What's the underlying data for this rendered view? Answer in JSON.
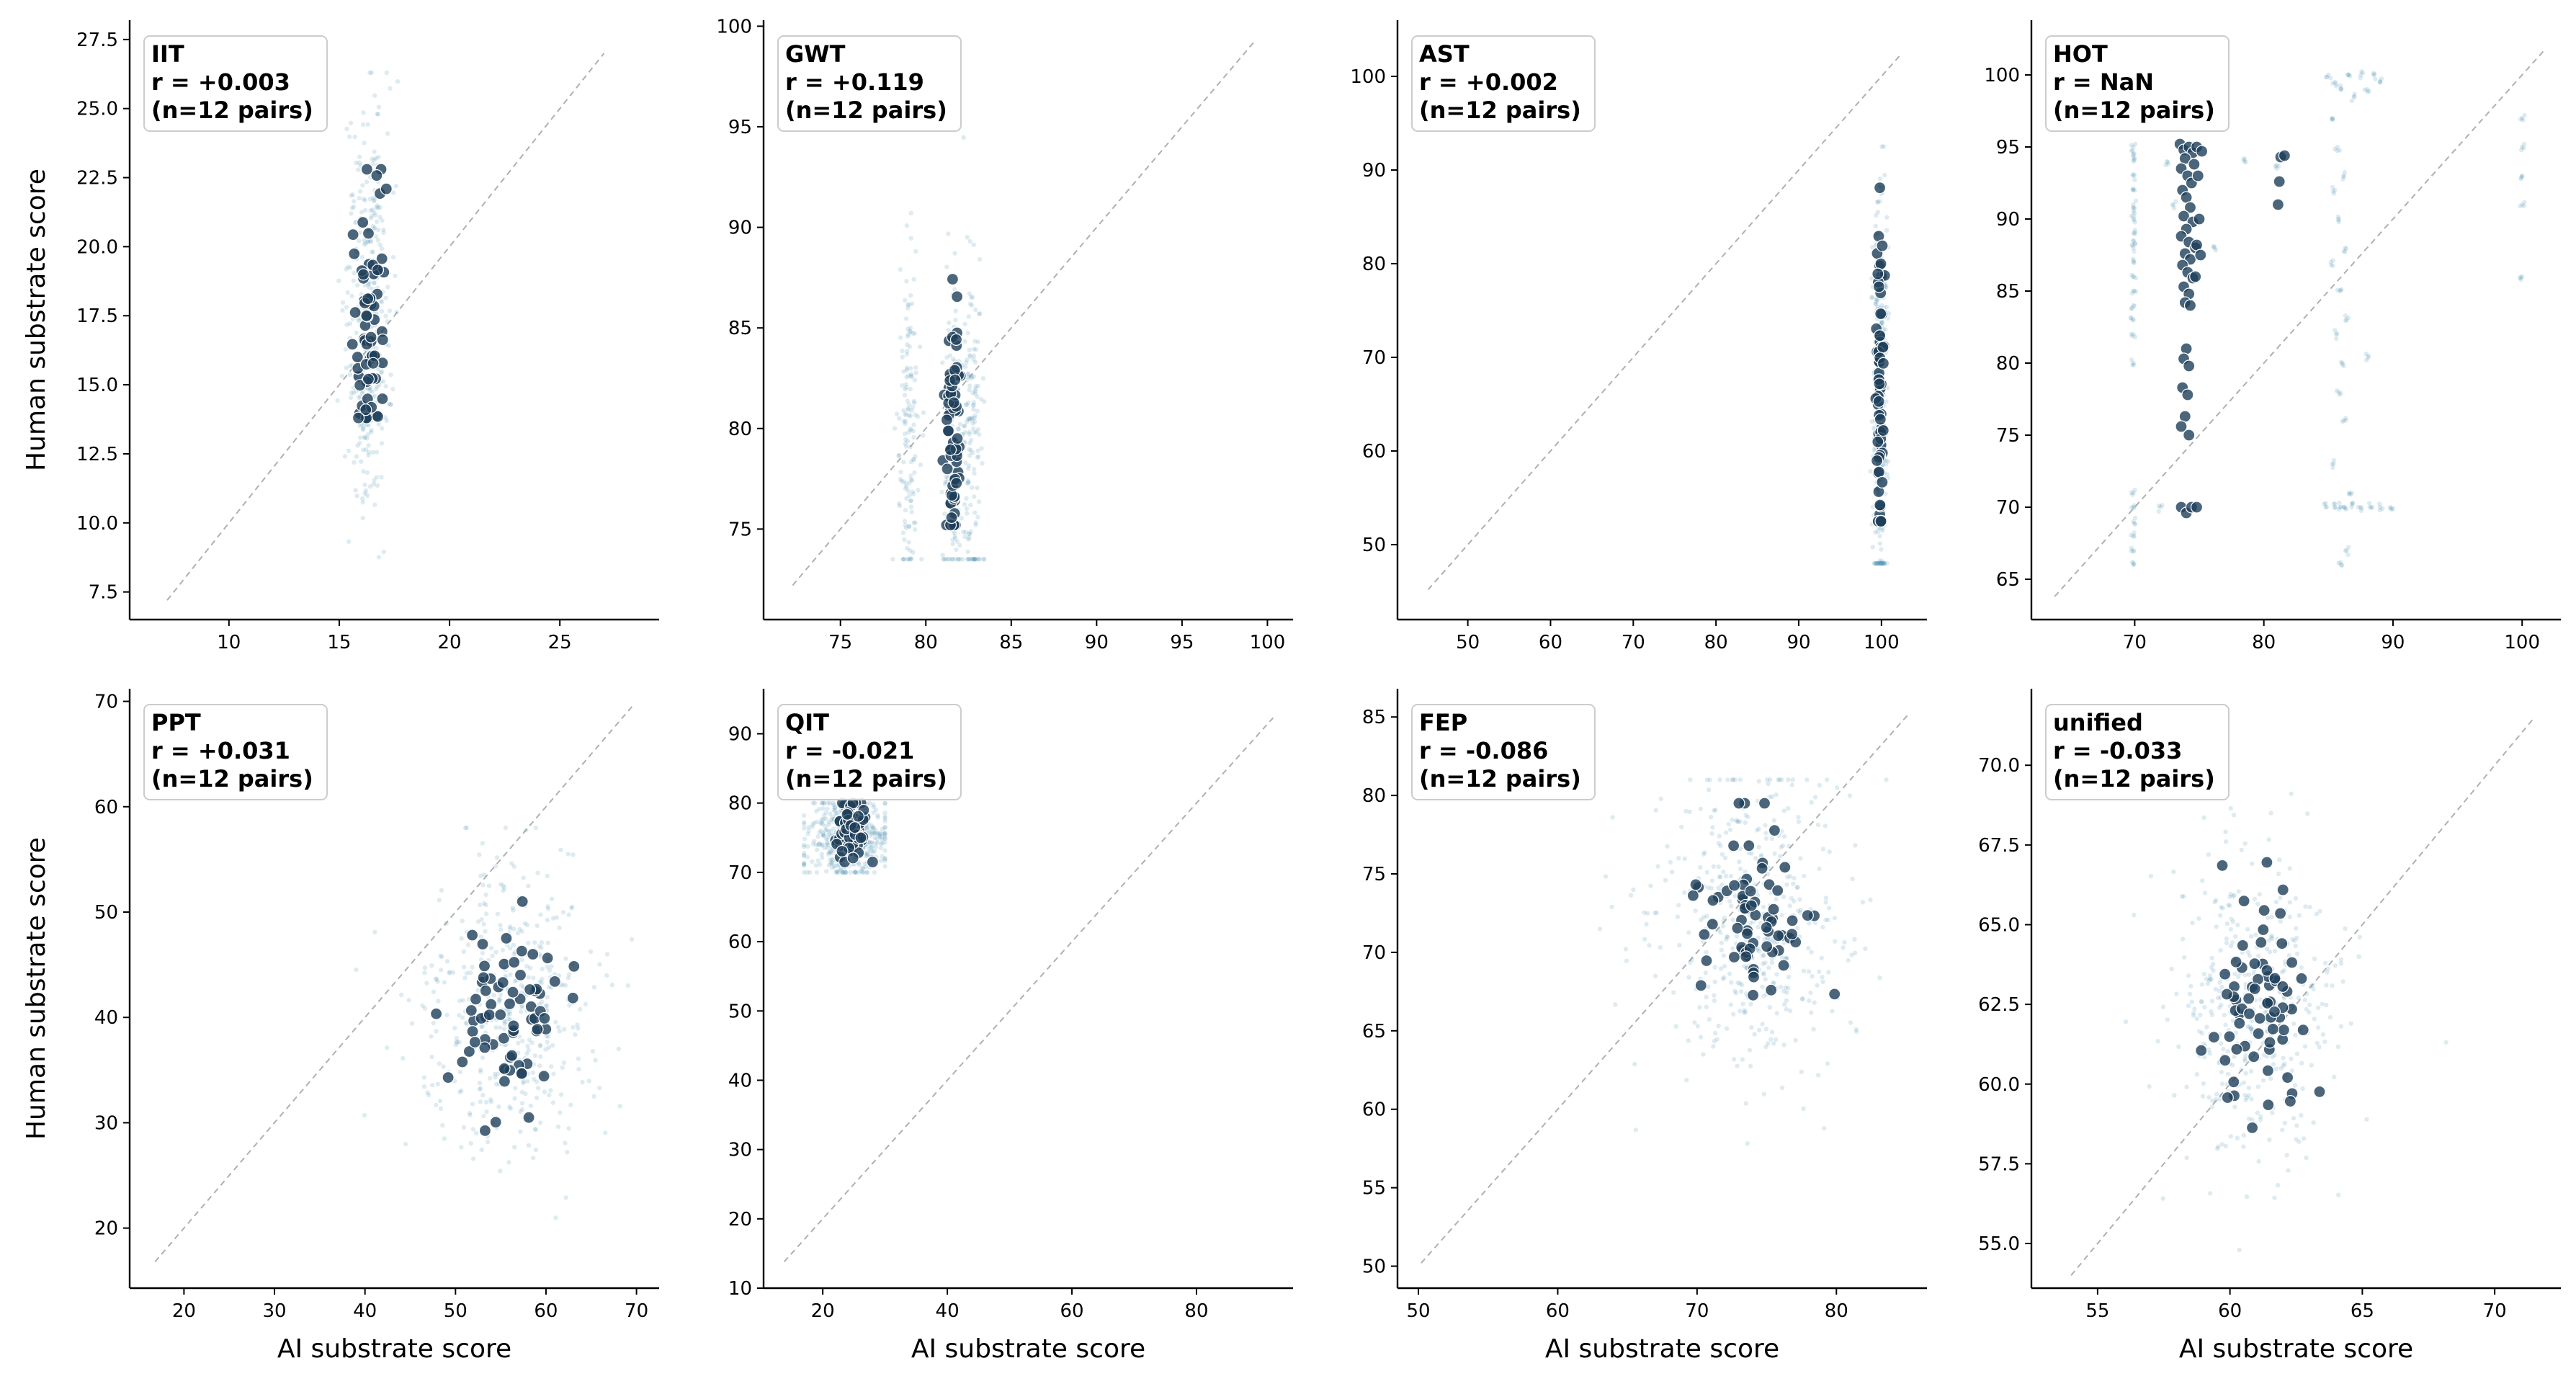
{
  "colors": {
    "background_dot": "#4a8fb0",
    "highlight_dot": "#1e3f5a",
    "diagonal": "#b0b0b0",
    "axis": "#000000",
    "annotation_border": "#cccccc"
  },
  "axis_labels": {
    "x": "AI substrate score",
    "y": "Human substrate score"
  },
  "chart_data": [
    {
      "type": "scatter",
      "panel": "IIT",
      "annotation": [
        "IIT",
        "r = +0.003",
        "(n=12 pairs)"
      ],
      "xlim": [
        5.5,
        29.5
      ],
      "ylim": [
        6.5,
        28.2
      ],
      "xticks": [
        10,
        15,
        20,
        25
      ],
      "xtick_labels": [
        "10",
        "15",
        "20",
        "25"
      ],
      "yticks": [
        7.5,
        10,
        12.5,
        15,
        17.5,
        20,
        22.5,
        25,
        27.5
      ],
      "ytick_labels": [
        "7.5",
        "10.0",
        "12.5",
        "15.0",
        "17.5",
        "20.0",
        "22.5",
        "25.0",
        "27.5"
      ],
      "diagonal": [
        7.2,
        27.0
      ],
      "show_xlabel": false,
      "show_ylabel": true,
      "highlight": {
        "x_center": 16.3,
        "x_spread": 0.4,
        "y_center": 17.8,
        "y_spread": 2.4,
        "y_min": 13.8,
        "y_max": 22.8,
        "n": 70
      },
      "background": {
        "x_center": 16.3,
        "x_spread": 0.5,
        "y_center": 17.5,
        "y_spread": 3.5,
        "y_min": 8.1,
        "y_max": 26.3,
        "n": 380
      }
    },
    {
      "type": "scatter",
      "panel": "GWT",
      "annotation": [
        "GWT",
        "r = +0.119",
        "(n=12 pairs)"
      ],
      "xlim": [
        70.5,
        101.5
      ],
      "ylim": [
        70.5,
        100.3
      ],
      "xticks": [
        75,
        80,
        85,
        90,
        95,
        100
      ],
      "xtick_labels": [
        "75",
        "80",
        "85",
        "90",
        "95",
        "100"
      ],
      "yticks": [
        75,
        80,
        85,
        90,
        95,
        100
      ],
      "ytick_labels": [
        "75",
        "80",
        "85",
        "90",
        "95",
        "100"
      ],
      "diagonal": [
        72.2,
        99.2
      ],
      "show_xlabel": false,
      "show_ylabel": false,
      "highlight": {
        "x_center": 81.6,
        "x_spread": 0.2,
        "y_center": 79.5,
        "y_spread": 3.0,
        "y_min": 75.2,
        "y_max": 92.7,
        "n": 70
      },
      "background": {
        "x_values": [
          79.0,
          81.6,
          82.7
        ],
        "x_spread": 0.3,
        "y_center": 79.5,
        "y_spread": 4.5,
        "y_min": 73.5,
        "y_max": 98.0,
        "n": 420
      }
    },
    {
      "type": "scatter",
      "panel": "AST",
      "annotation": [
        "AST",
        "r = +0.002",
        "(n=12 pairs)"
      ],
      "xlim": [
        41.5,
        105.5
      ],
      "ylim": [
        42,
        106
      ],
      "xticks": [
        50,
        60,
        70,
        80,
        90,
        100
      ],
      "xtick_labels": [
        "50",
        "60",
        "70",
        "80",
        "90",
        "100"
      ],
      "yticks": [
        50,
        60,
        70,
        80,
        90,
        100
      ],
      "ytick_labels": [
        "50",
        "60",
        "70",
        "80",
        "90",
        "100"
      ],
      "diagonal": [
        45.2,
        102.3
      ],
      "show_xlabel": false,
      "show_ylabel": false,
      "highlight": {
        "x_center": 99.8,
        "x_spread": 0.2,
        "y_center": 66.0,
        "y_spread": 9.0,
        "y_min": 52.5,
        "y_max": 89.0,
        "n": 70
      },
      "background": {
        "x_center": 99.8,
        "x_spread": 0.4,
        "y_center": 66.0,
        "y_spread": 11.0,
        "y_min": 48.0,
        "y_max": 92.5,
        "n": 380
      }
    },
    {
      "type": "scatter",
      "panel": "HOT",
      "annotation": [
        "HOT",
        "r = NaN",
        "(n=12 pairs)"
      ],
      "xlim": [
        62,
        103
      ],
      "ylim": [
        62.2,
        103.8
      ],
      "xticks": [
        70,
        80,
        90,
        100
      ],
      "xtick_labels": [
        "70",
        "80",
        "90",
        "100"
      ],
      "yticks": [
        65,
        70,
        75,
        80,
        85,
        90,
        95,
        100
      ],
      "ytick_labels": [
        "65",
        "70",
        "75",
        "80",
        "85",
        "90",
        "95",
        "100"
      ],
      "diagonal": [
        63.8,
        101.7
      ],
      "show_xlabel": false,
      "show_ylabel": false,
      "highlight_points": [
        [
          73.5,
          95.2
        ],
        [
          73.8,
          94.8
        ],
        [
          74.2,
          95.0
        ],
        [
          74.5,
          94.6
        ],
        [
          73.9,
          94.2
        ],
        [
          74.6,
          93.8
        ],
        [
          73.6,
          93.5
        ],
        [
          74.1,
          93.0
        ],
        [
          74.4,
          92.5
        ],
        [
          73.7,
          92.0
        ],
        [
          74.0,
          91.5
        ],
        [
          74.3,
          90.8
        ],
        [
          73.8,
          90.2
        ],
        [
          74.5,
          89.8
        ],
        [
          74.0,
          89.3
        ],
        [
          73.6,
          88.8
        ],
        [
          74.2,
          88.4
        ],
        [
          74.7,
          88.0
        ],
        [
          73.9,
          87.6
        ],
        [
          74.3,
          87.2
        ],
        [
          73.7,
          86.8
        ],
        [
          74.1,
          86.3
        ],
        [
          74.5,
          85.9
        ],
        [
          73.8,
          85.3
        ],
        [
          74.2,
          84.8
        ],
        [
          73.9,
          84.2
        ],
        [
          74.3,
          84.0
        ],
        [
          74.0,
          81.0
        ],
        [
          73.8,
          80.3
        ],
        [
          74.2,
          79.8
        ],
        [
          73.7,
          78.3
        ],
        [
          74.1,
          77.8
        ],
        [
          73.9,
          76.3
        ],
        [
          73.6,
          75.6
        ],
        [
          74.2,
          75.0
        ],
        [
          74.8,
          95.0
        ],
        [
          75.2,
          94.7
        ],
        [
          74.9,
          93.0
        ],
        [
          75.0,
          90.0
        ],
        [
          74.8,
          88.2
        ],
        [
          75.1,
          87.5
        ],
        [
          74.7,
          86.0
        ],
        [
          73.6,
          70.0
        ],
        [
          74.0,
          69.6
        ],
        [
          74.4,
          70.0
        ],
        [
          74.8,
          70.0
        ],
        [
          81.3,
          94.3
        ],
        [
          81.6,
          94.4
        ],
        [
          81.2,
          92.6
        ],
        [
          81.1,
          91.0
        ]
      ],
      "background_points": [
        [
          69.9,
          95
        ],
        [
          69.9,
          94
        ],
        [
          69.9,
          93
        ],
        [
          69.9,
          92
        ],
        [
          69.9,
          91
        ],
        [
          69.9,
          90
        ],
        [
          69.9,
          89
        ],
        [
          69.9,
          88
        ],
        [
          69.9,
          87
        ],
        [
          69.9,
          86
        ],
        [
          69.9,
          85
        ],
        [
          69.9,
          84
        ],
        [
          69.9,
          83
        ],
        [
          69.9,
          82
        ],
        [
          69.9,
          80
        ],
        [
          69.9,
          71
        ],
        [
          69.9,
          70
        ],
        [
          69.9,
          69
        ],
        [
          69.9,
          68
        ],
        [
          69.9,
          67
        ],
        [
          69.9,
          66
        ],
        [
          69.9,
          94.5
        ],
        [
          69.9,
          90.5
        ],
        [
          69.9,
          88.5
        ],
        [
          85.0,
          100
        ],
        [
          85.5,
          99.5
        ],
        [
          86.0,
          99
        ],
        [
          86.5,
          100
        ],
        [
          87.0,
          98.5
        ],
        [
          87.5,
          100
        ],
        [
          88.0,
          99
        ],
        [
          88.5,
          100
        ],
        [
          89.0,
          99.5
        ],
        [
          85.3,
          97
        ],
        [
          85.7,
          95
        ],
        [
          86.2,
          93
        ],
        [
          85.5,
          92
        ],
        [
          85.8,
          90
        ],
        [
          86.3,
          88
        ],
        [
          85.2,
          87
        ],
        [
          85.9,
          85
        ],
        [
          86.4,
          83
        ],
        [
          85.6,
          82
        ],
        [
          86.1,
          80
        ],
        [
          85.8,
          78
        ],
        [
          86.2,
          76
        ],
        [
          85.4,
          73
        ],
        [
          85.9,
          70
        ],
        [
          86.4,
          67
        ],
        [
          84.8,
          70
        ],
        [
          85.5,
          70
        ],
        [
          86.2,
          70
        ],
        [
          86.8,
          70
        ],
        [
          87.5,
          70
        ],
        [
          88.2,
          70
        ],
        [
          89.0,
          70
        ],
        [
          89.8,
          70
        ],
        [
          86.6,
          71
        ],
        [
          86.0,
          66
        ],
        [
          100,
          97
        ],
        [
          100,
          95
        ],
        [
          100,
          93
        ],
        [
          100,
          91
        ],
        [
          100,
          86
        ],
        [
          88.1,
          80.5
        ],
        [
          72.0,
          70
        ],
        [
          72.5,
          94
        ],
        [
          73.0,
          91
        ],
        [
          76.2,
          88
        ],
        [
          78.5,
          94
        ],
        [
          81.6,
          94.5
        ],
        [
          81.0,
          93.5
        ]
      ]
    },
    {
      "type": "scatter",
      "panel": "PPT",
      "annotation": [
        "PPT",
        "r = +0.031",
        "(n=12 pairs)"
      ],
      "xlim": [
        14,
        72.5
      ],
      "ylim": [
        14.3,
        71.2
      ],
      "xticks": [
        20,
        30,
        40,
        50,
        60,
        70
      ],
      "xtick_labels": [
        "20",
        "30",
        "40",
        "50",
        "60",
        "70"
      ],
      "yticks": [
        20,
        30,
        40,
        50,
        60,
        70
      ],
      "ytick_labels": [
        "20",
        "30",
        "40",
        "50",
        "60",
        "70"
      ],
      "diagonal": [
        16.8,
        69.5
      ],
      "show_xlabel": true,
      "show_ylabel": true,
      "highlight": {
        "x_center": 56.0,
        "x_spread": 3.0,
        "y_center": 40.5,
        "y_spread": 5.2,
        "y_min": 28.5,
        "y_max": 51.0,
        "n": 70
      },
      "background": {
        "x_center": 56.0,
        "x_spread": 5.0,
        "y_center": 40.5,
        "y_spread": 7.0,
        "y_min": 19.0,
        "y_max": 58.0,
        "n": 450
      }
    },
    {
      "type": "scatter",
      "panel": "QIT",
      "annotation": [
        "QIT",
        "r = -0.021",
        "(n=12 pairs)"
      ],
      "xlim": [
        10.5,
        95.5
      ],
      "ylim": [
        10,
        96.5
      ],
      "xticks": [
        20,
        40,
        60,
        80
      ],
      "xtick_labels": [
        "20",
        "40",
        "60",
        "80"
      ],
      "yticks": [
        10,
        20,
        30,
        40,
        50,
        60,
        70,
        80,
        90
      ],
      "ytick_labels": [
        "10",
        "20",
        "30",
        "40",
        "50",
        "60",
        "70",
        "80",
        "90"
      ],
      "diagonal": [
        13.8,
        92.3
      ],
      "show_xlabel": true,
      "show_ylabel": false,
      "highlight": {
        "x_center": 24.5,
        "x_spread": 1.3,
        "y_center": 75.5,
        "y_spread": 2.2,
        "y_min": 71.5,
        "y_max": 80.0,
        "n": 80
      },
      "background": {
        "x_center": 24.0,
        "x_spread": 3.5,
        "y_center": 75.0,
        "y_spread": 3.0,
        "y_min": 70.0,
        "y_max": 80.0,
        "x_min": 17.0,
        "x_max": 30.0,
        "n": 450
      }
    },
    {
      "type": "scatter",
      "panel": "FEP",
      "annotation": [
        "FEP",
        "r = -0.086",
        "(n=12 pairs)"
      ],
      "xlim": [
        48.5,
        86.5
      ],
      "ylim": [
        48.6,
        86.8
      ],
      "xticks": [
        50,
        60,
        70,
        80
      ],
      "xtick_labels": [
        "50",
        "60",
        "70",
        "80"
      ],
      "yticks": [
        50,
        55,
        60,
        65,
        70,
        75,
        80,
        85
      ],
      "ytick_labels": [
        "50",
        "55",
        "60",
        "65",
        "70",
        "75",
        "80",
        "85"
      ],
      "diagonal": [
        50.2,
        85.2
      ],
      "show_xlabel": true,
      "show_ylabel": false,
      "highlight": {
        "x_center": 74.0,
        "x_spread": 1.8,
        "y_center": 72.5,
        "y_spread": 3.0,
        "y_min": 58.8,
        "y_max": 79.5,
        "n": 70
      },
      "background": {
        "x_center": 74.0,
        "x_spread": 3.5,
        "y_center": 72.0,
        "y_spread": 5.0,
        "y_min": 52.0,
        "y_max": 81.0,
        "n": 450
      }
    },
    {
      "type": "scatter",
      "panel": "unified",
      "annotation": [
        "unified",
        "r = -0.033",
        "(n=12 pairs)"
      ],
      "xlim": [
        52.5,
        72.5
      ],
      "ylim": [
        53.6,
        72.4
      ],
      "xticks": [
        55,
        60,
        65,
        70
      ],
      "xtick_labels": [
        "55",
        "60",
        "65",
        "70"
      ],
      "yticks": [
        55,
        57.5,
        60,
        62.5,
        65,
        67.5,
        70
      ],
      "ytick_labels": [
        "55.0",
        "57.5",
        "60.0",
        "62.5",
        "65.0",
        "67.5",
        "70.0"
      ],
      "diagonal": [
        54.0,
        71.5
      ],
      "show_xlabel": true,
      "show_ylabel": false,
      "highlight": {
        "x_center": 60.9,
        "x_spread": 0.9,
        "y_center": 62.5,
        "y_spread": 1.6,
        "y_min": 57.5,
        "y_max": 67.0,
        "n": 70
      },
      "background": {
        "x_center": 60.9,
        "x_spread": 1.6,
        "y_center": 62.3,
        "y_spread": 2.3,
        "y_min": 54.8,
        "y_max": 70.5,
        "n": 420
      }
    }
  ]
}
